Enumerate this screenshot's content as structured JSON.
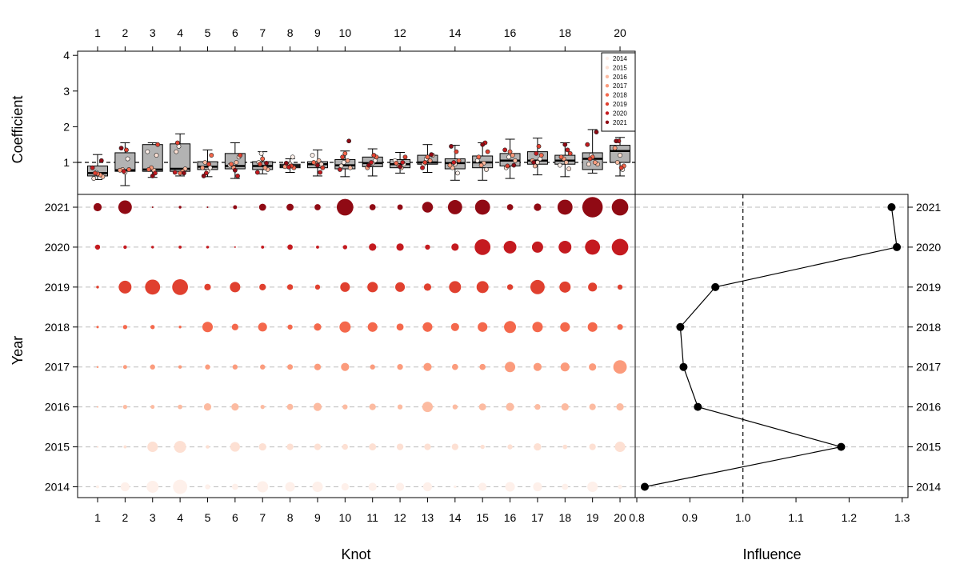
{
  "chart_data": [
    {
      "type": "box",
      "panel": "coefficient",
      "ylabel": "Coefficient",
      "ylim": [
        0,
        4.2
      ],
      "yticks": [
        "1",
        "2",
        "3",
        "4"
      ],
      "reference_line": 1,
      "top_axis_ticks": [
        "1",
        "2",
        "3",
        "4",
        "5",
        "6",
        "7",
        "8",
        "9",
        "10",
        "12",
        "14",
        "16",
        "18",
        "20"
      ],
      "legend_position": "top-right",
      "legend": [
        "2014",
        "2015",
        "2016",
        "2017",
        "2018",
        "2019",
        "2020",
        "2021"
      ],
      "categories": [
        1,
        2,
        3,
        4,
        5,
        6,
        7,
        8,
        9,
        10,
        11,
        12,
        13,
        14,
        15,
        16,
        17,
        18,
        19,
        20
      ],
      "boxes": [
        {
          "min": 0.52,
          "q1": 0.62,
          "median": 0.7,
          "q3": 0.9,
          "max": 1.22
        },
        {
          "min": 0.35,
          "q1": 0.75,
          "median": 0.78,
          "q3": 1.27,
          "max": 1.55
        },
        {
          "min": 0.58,
          "q1": 0.75,
          "median": 0.8,
          "q3": 1.5,
          "max": 1.55
        },
        {
          "min": 0.62,
          "q1": 0.75,
          "median": 0.82,
          "q3": 1.52,
          "max": 1.8
        },
        {
          "min": 0.6,
          "q1": 0.8,
          "median": 0.88,
          "q3": 1.02,
          "max": 1.35
        },
        {
          "min": 0.55,
          "q1": 0.82,
          "median": 0.9,
          "q3": 1.25,
          "max": 1.55
        },
        {
          "min": 0.68,
          "q1": 0.8,
          "median": 0.9,
          "q3": 1.02,
          "max": 1.3
        },
        {
          "min": 0.72,
          "q1": 0.85,
          "median": 0.9,
          "q3": 0.95,
          "max": 1.1
        },
        {
          "min": 0.62,
          "q1": 0.85,
          "median": 0.95,
          "q3": 1.02,
          "max": 1.35
        },
        {
          "min": 0.6,
          "q1": 0.82,
          "median": 0.92,
          "q3": 1.08,
          "max": 1.32
        },
        {
          "min": 0.62,
          "q1": 0.88,
          "median": 0.98,
          "q3": 1.15,
          "max": 1.38
        },
        {
          "min": 0.7,
          "q1": 0.85,
          "median": 0.95,
          "q3": 1.08,
          "max": 1.28
        },
        {
          "min": 0.72,
          "q1": 0.95,
          "median": 1.0,
          "q3": 1.2,
          "max": 1.5
        },
        {
          "min": 0.5,
          "q1": 0.82,
          "median": 0.98,
          "q3": 1.1,
          "max": 1.48
        },
        {
          "min": 0.5,
          "q1": 0.85,
          "median": 1.0,
          "q3": 1.18,
          "max": 1.55
        },
        {
          "min": 0.55,
          "q1": 0.9,
          "median": 1.05,
          "q3": 1.25,
          "max": 1.65
        },
        {
          "min": 0.65,
          "q1": 0.95,
          "median": 1.05,
          "q3": 1.3,
          "max": 1.68
        },
        {
          "min": 0.6,
          "q1": 0.95,
          "median": 1.05,
          "q3": 1.2,
          "max": 1.55
        },
        {
          "min": 0.7,
          "q1": 0.8,
          "median": 1.1,
          "q3": 1.27,
          "max": 1.92
        },
        {
          "min": 0.62,
          "q1": 1.0,
          "median": 1.32,
          "q3": 1.48,
          "max": 1.7
        }
      ],
      "points_note": "one point per year (2014-2021) per knot, equal to the year coefficient, colored by year",
      "points": [
        [
          0.72,
          0.55,
          0.6,
          0.65,
          0.68,
          0.7,
          0.85,
          1.05
        ],
        [
          1.1,
          0.72,
          0.8,
          0.78,
          0.8,
          1.35,
          0.75,
          1.4
        ],
        [
          1.3,
          1.2,
          0.78,
          0.85,
          0.8,
          1.5,
          0.7,
          0.62
        ],
        [
          1.45,
          1.3,
          0.82,
          0.75,
          0.7,
          1.55,
          0.72,
          0.7
        ],
        [
          0.85,
          0.75,
          1.0,
          0.85,
          1.2,
          0.95,
          0.7,
          0.62
        ],
        [
          0.92,
          1.15,
          1.0,
          0.85,
          0.95,
          1.2,
          0.62,
          0.78
        ],
        [
          1.25,
          1.0,
          0.8,
          0.85,
          1.1,
          0.95,
          0.72,
          0.98
        ],
        [
          1.15,
          0.95,
          0.92,
          0.88,
          0.85,
          0.9,
          0.87,
          0.98
        ],
        [
          1.2,
          0.95,
          1.05,
          0.95,
          1.0,
          0.85,
          0.72,
          0.92
        ],
        [
          1.0,
          0.9,
          0.85,
          1.05,
          1.25,
          1.15,
          0.8,
          1.6
        ],
        [
          1.05,
          0.98,
          0.95,
          0.85,
          1.15,
          1.2,
          1.0,
          0.92
        ],
        [
          1.05,
          0.95,
          0.85,
          0.9,
          0.98,
          1.15,
          1.0,
          0.88
        ],
        [
          1.1,
          0.95,
          1.2,
          1.05,
          1.15,
          1.0,
          0.85,
          1.22
        ],
        [
          0.7,
          0.95,
          0.85,
          0.92,
          1.05,
          1.3,
          1.0,
          1.45
        ],
        [
          1.05,
          0.8,
          0.98,
          0.92,
          1.15,
          1.3,
          1.55,
          1.5
        ],
        [
          1.15,
          0.85,
          1.05,
          1.2,
          1.3,
          0.9,
          1.35,
          0.92
        ],
        [
          1.1,
          1.0,
          0.9,
          1.05,
          1.2,
          1.45,
          1.25,
          1.0
        ],
        [
          0.92,
          0.82,
          1.0,
          1.1,
          1.15,
          1.25,
          1.35,
          1.5
        ],
        [
          1.2,
          0.95,
          0.95,
          1.0,
          1.15,
          1.1,
          1.5,
          1.85
        ],
        [
          0.8,
          1.2,
          1.0,
          1.4,
          0.9,
          0.85,
          1.6,
          1.6
        ]
      ]
    },
    {
      "type": "bubble",
      "panel": "knot-by-year",
      "xlabel": "Knot",
      "ylabel": "Year",
      "xticks": [
        "1",
        "2",
        "3",
        "4",
        "5",
        "6",
        "7",
        "8",
        "9",
        "10",
        "11",
        "12",
        "13",
        "14",
        "15",
        "16",
        "17",
        "18",
        "19",
        "20"
      ],
      "years": [
        "2014",
        "2015",
        "2016",
        "2017",
        "2018",
        "2019",
        "2020",
        "2021"
      ],
      "year_colors": [
        "#fef0ea",
        "#fde0d3",
        "#fcbba1",
        "#fb9b7c",
        "#f4684c",
        "#e0402f",
        "#c41a1f",
        "#900a14"
      ],
      "grid": "horizontal dashed",
      "note": "bubble size proportional to the knot coefficient for that year",
      "values": [
        [
          0.72,
          1.1,
          1.3,
          1.45,
          0.85,
          0.92,
          1.25,
          1.15,
          1.2,
          1.0,
          1.05,
          1.05,
          1.1,
          0.7,
          1.05,
          1.15,
          1.1,
          0.92,
          1.2,
          0.8
        ],
        [
          0.55,
          0.72,
          1.2,
          1.3,
          0.75,
          1.15,
          1.0,
          0.95,
          0.95,
          0.9,
          0.98,
          0.95,
          0.95,
          0.95,
          0.8,
          0.85,
          1.0,
          0.82,
          0.95,
          1.2
        ],
        [
          0.6,
          0.8,
          0.78,
          0.82,
          1.0,
          1.0,
          0.8,
          0.92,
          1.05,
          0.85,
          0.95,
          0.85,
          1.2,
          0.85,
          0.98,
          1.05,
          0.9,
          1.0,
          0.95,
          1.0
        ],
        [
          0.65,
          0.78,
          0.85,
          0.75,
          0.85,
          0.85,
          0.85,
          0.88,
          0.95,
          1.05,
          0.85,
          0.9,
          1.05,
          0.92,
          0.92,
          1.2,
          1.05,
          1.1,
          1.0,
          1.4
        ],
        [
          0.68,
          0.8,
          0.8,
          0.7,
          1.2,
          0.95,
          1.1,
          0.85,
          1.0,
          1.25,
          1.15,
          0.98,
          1.15,
          1.05,
          1.15,
          1.3,
          1.2,
          1.15,
          1.15,
          0.9
        ],
        [
          0.7,
          1.35,
          1.5,
          1.55,
          0.95,
          1.2,
          0.95,
          0.9,
          0.85,
          1.15,
          1.2,
          1.15,
          1.0,
          1.3,
          1.3,
          0.9,
          1.45,
          1.25,
          1.1,
          0.85
        ],
        [
          0.85,
          0.75,
          0.7,
          0.72,
          0.7,
          0.62,
          0.72,
          0.87,
          0.72,
          0.8,
          1.0,
          1.0,
          0.85,
          1.0,
          1.55,
          1.35,
          1.25,
          1.35,
          1.5,
          1.6
        ],
        [
          1.05,
          1.4,
          0.62,
          0.7,
          0.62,
          0.78,
          0.98,
          0.98,
          0.92,
          1.6,
          0.92,
          0.88,
          1.22,
          1.45,
          1.5,
          0.92,
          1.0,
          1.5,
          1.85,
          1.6
        ]
      ]
    },
    {
      "type": "line",
      "panel": "influence",
      "xlabel": "Influence",
      "xlim": [
        0.8,
        1.3
      ],
      "xticks": [
        "0.8",
        "0.9",
        "1.0",
        "1.1",
        "1.2",
        "1.3"
      ],
      "reference_line": 1.0,
      "grid": "horizontal dashed",
      "points": [
        {
          "year": "2014",
          "x": 0.815
        },
        {
          "year": "2015",
          "x": 1.185
        },
        {
          "year": "2016",
          "x": 0.915
        },
        {
          "year": "2017",
          "x": 0.888
        },
        {
          "year": "2018",
          "x": 0.882
        },
        {
          "year": "2019",
          "x": 0.948
        },
        {
          "year": "2020",
          "x": 1.29
        },
        {
          "year": "2021",
          "x": 1.28
        }
      ]
    }
  ]
}
